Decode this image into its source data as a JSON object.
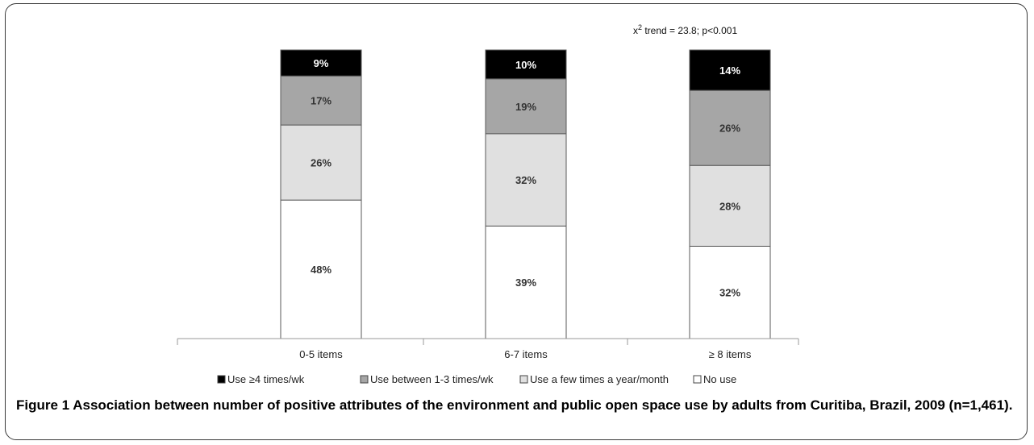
{
  "chart_data": {
    "type": "bar",
    "stacked": true,
    "normalized": true,
    "categories": [
      "0-5 items",
      "6-7 items",
      "≥ 8 items"
    ],
    "series": [
      {
        "name": "No use",
        "values": [
          48,
          39,
          32
        ],
        "labels": [
          "48%",
          "39%",
          "32%"
        ],
        "color": "#ffffff"
      },
      {
        "name": "Use a few times a year/month",
        "values": [
          26,
          32,
          28
        ],
        "labels": [
          "26%",
          "32%",
          "28%"
        ],
        "color": "#e0e0e0"
      },
      {
        "name": "Use between 1-3 times/wk",
        "values": [
          17,
          19,
          26
        ],
        "labels": [
          "17%",
          "19%",
          "26%"
        ],
        "color": "#a6a6a6"
      },
      {
        "name": "Use ≥4 times/wk",
        "values": [
          9,
          10,
          14
        ],
        "labels": [
          "9%",
          "10%",
          "14%"
        ],
        "color": "#000000"
      }
    ],
    "legend_order": [
      "Use ≥4 times/wk",
      "Use between 1-3 times/wk",
      "Use a few times a year/month",
      "No use"
    ],
    "legend_position": "bottom",
    "annotation": {
      "prefix": "x",
      "superscript": "2",
      "text": " trend = 23.8; p<0.001"
    },
    "grid": false
  },
  "caption": {
    "label": "Figure 1",
    "text": " Association between number of positive attributes of the environment and public open space use by adults from Curitiba, Brazil, 2009 (n=1,461)."
  }
}
